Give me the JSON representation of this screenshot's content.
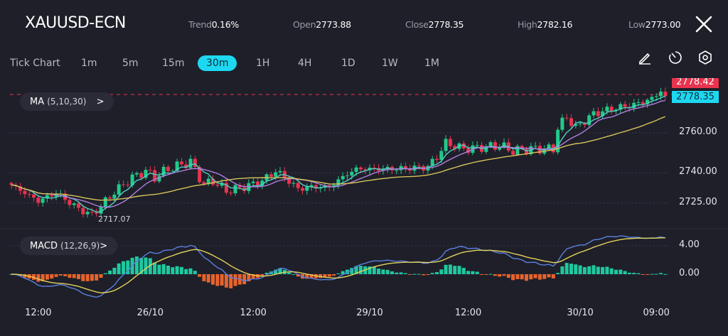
{
  "header": {
    "symbol": "XAUUSD-ECN",
    "stats": [
      {
        "label": "Trend",
        "value": "0.16%"
      },
      {
        "label": "Open",
        "value": "2773.88"
      },
      {
        "label": "Close",
        "value": "2778.35"
      },
      {
        "label": "High",
        "value": "2782.16"
      },
      {
        "label": "Low",
        "value": "2773.00"
      }
    ],
    "close_icon": "close-icon"
  },
  "timeframes": [
    "Tick Chart",
    "1m",
    "5m",
    "15m",
    "30m",
    "1H",
    "4H",
    "1D",
    "1W",
    "1M"
  ],
  "active_timeframe": "30m",
  "tools": [
    "pencil-icon",
    "timer-icon",
    "settings-hex-icon"
  ],
  "indicators": {
    "ma": {
      "name": "MA",
      "params": "(5,10,30)",
      "chevron": ">"
    },
    "macd": {
      "name": "MACD",
      "params": "(12,26,9)",
      "chevron": ">"
    }
  },
  "price_labels": {
    "high_line": "2778.42",
    "last": "2778.35",
    "low_marker": "2717.07"
  },
  "colors": {
    "up": "#22c98a",
    "down": "#e8344e",
    "ma5": "#4fd1c5",
    "ma10": "#b07fe0",
    "ma30": "#d8c35a",
    "macd": "#5b7fe0",
    "signal": "#e3d35c",
    "hist_pos": "#1fc9a0",
    "hist_neg": "#e8632b",
    "accent": "#1ed8f2"
  },
  "chart_data": {
    "type": "candlestick",
    "title": "XAUUSD-ECN 30m",
    "price_axis": {
      "ticks": [
        "2760.00",
        "2740.00",
        "2725.00"
      ],
      "tick_values": [
        2760,
        2740,
        2725
      ]
    },
    "macd_axis": {
      "ticks": [
        "4.00",
        "0.00"
      ],
      "tick_values": [
        4,
        0
      ]
    },
    "x_ticks": [
      "12:00",
      "26/10",
      "12:00",
      "29/10",
      "12:00",
      "30/10",
      "09:00"
    ],
    "x_tick_bars": [
      6,
      31,
      54,
      80,
      102,
      127,
      144
    ],
    "bar_count": 147,
    "close_keypoints": [
      [
        0,
        2734
      ],
      [
        6,
        2726
      ],
      [
        10,
        2730
      ],
      [
        15,
        2722
      ],
      [
        18,
        2719
      ],
      [
        20,
        2723.5
      ],
      [
        23,
        2730.5
      ],
      [
        27,
        2737.7
      ],
      [
        30,
        2741
      ],
      [
        32,
        2737.7
      ],
      [
        35,
        2742
      ],
      [
        40,
        2745.5
      ],
      [
        43,
        2734
      ],
      [
        45,
        2736
      ],
      [
        48,
        2731
      ],
      [
        52,
        2733
      ],
      [
        56,
        2736
      ],
      [
        59,
        2741
      ],
      [
        61,
        2737.7
      ],
      [
        64,
        2732
      ],
      [
        67,
        2733
      ],
      [
        71,
        2733
      ],
      [
        74,
        2738
      ],
      [
        77,
        2742
      ],
      [
        80,
        2742
      ],
      [
        86,
        2742
      ],
      [
        93,
        2743
      ],
      [
        95,
        2748
      ],
      [
        97,
        2755
      ],
      [
        101,
        2752
      ],
      [
        106,
        2753
      ],
      [
        109,
        2753.6
      ],
      [
        112,
        2751
      ],
      [
        116,
        2752
      ],
      [
        121,
        2752
      ],
      [
        122,
        2762.5
      ],
      [
        124,
        2768
      ],
      [
        126,
        2762.5
      ],
      [
        130,
        2769.5
      ],
      [
        134,
        2772
      ],
      [
        139,
        2774
      ],
      [
        143,
        2777
      ],
      [
        145,
        2781
      ],
      [
        146,
        2778.35
      ]
    ],
    "moving_averages": [
      5,
      10,
      30
    ],
    "macd_params": [
      12,
      26,
      9
    ],
    "last_price": 2778.35,
    "marked_high": 2778.42,
    "marked_low": 2717.07
  }
}
